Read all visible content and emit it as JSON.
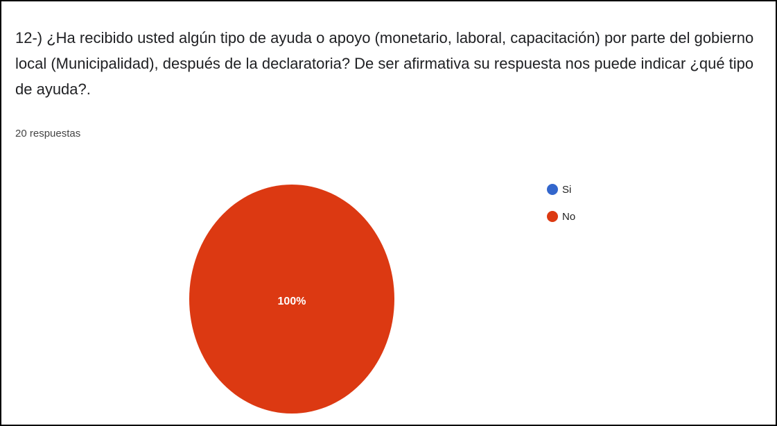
{
  "chart_data": {
    "type": "pie",
    "title": "12-) ¿Ha recibido usted algún tipo de ayuda o apoyo (monetario, laboral, capacitación) por parte del gobierno local (Municipalidad), después de la declaratoria? De ser afirmativa su respuesta nos puede indicar ¿qué tipo de ayuda?.",
    "subtitle": "20 respuestas",
    "categories": [
      "Si",
      "No"
    ],
    "values": [
      0,
      100
    ],
    "value_labels": [
      null,
      "100%"
    ],
    "colors": [
      "#3366cc",
      "#dc3912"
    ],
    "legend": "right"
  }
}
